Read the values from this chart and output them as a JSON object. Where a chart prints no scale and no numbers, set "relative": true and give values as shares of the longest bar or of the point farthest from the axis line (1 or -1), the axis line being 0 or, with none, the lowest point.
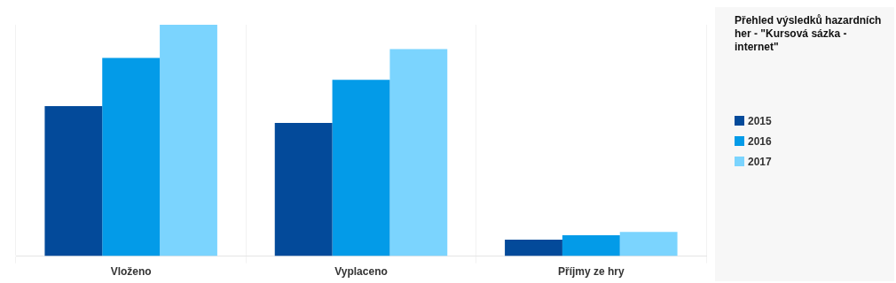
{
  "chart_data": {
    "type": "bar",
    "title": "Přehled výsledků hazardních her - \"Kursová sázka - internet\"",
    "categories": [
      "Vloženo",
      "Vyplaceno",
      "Příjmy ze hry"
    ],
    "relative": true,
    "series": [
      {
        "name": "2015",
        "color": "#034a9a",
        "values": [
          0.648,
          0.576,
          0.071
        ]
      },
      {
        "name": "2016",
        "color": "#039be8",
        "values": [
          0.857,
          0.762,
          0.09
        ]
      },
      {
        "name": "2017",
        "color": "#7bd4fe",
        "values": [
          1,
          0.895,
          0.105
        ]
      }
    ],
    "grid": true,
    "legend": "right"
  }
}
